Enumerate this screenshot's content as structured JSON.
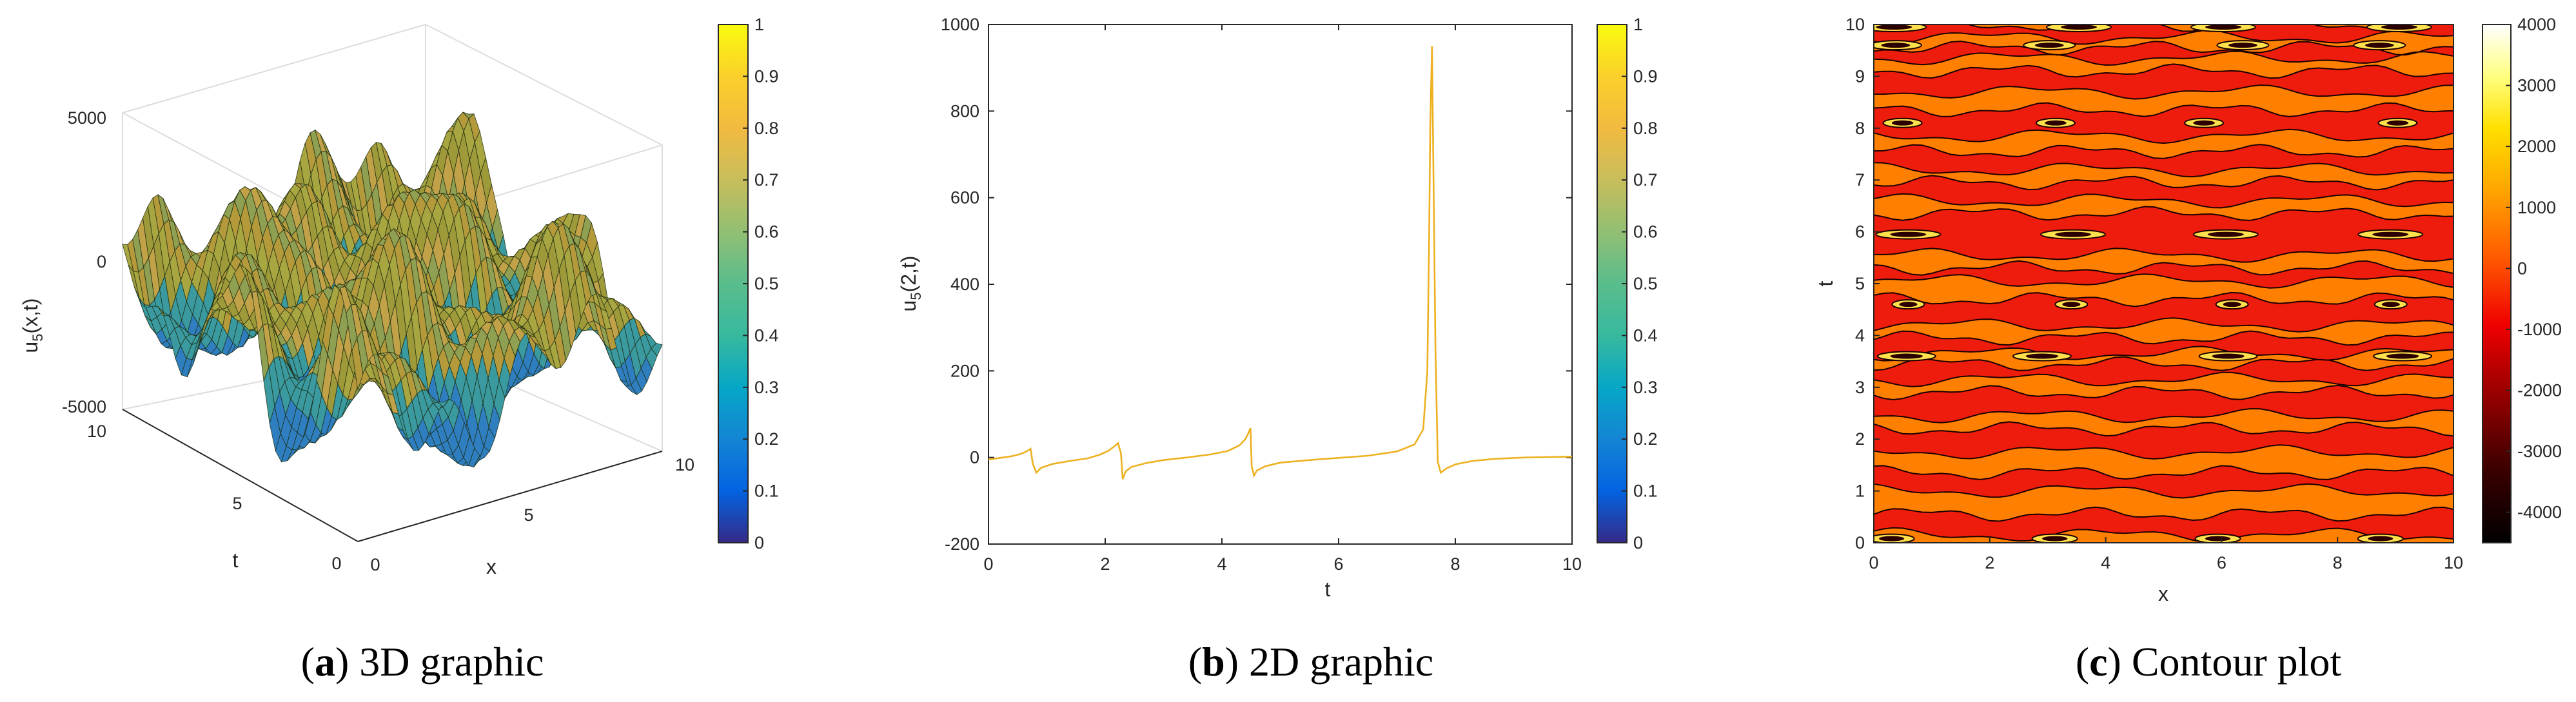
{
  "chart_data": [
    {
      "panel": "a",
      "type": "surface3d",
      "caption_letter": "a",
      "caption_text": "3D graphic",
      "zlabel_main": "u",
      "zlabel_sub": "5",
      "zlabel_arg": "(x,t)",
      "xlabel": "x",
      "tlabel": "t",
      "z_ticks": [
        "5000",
        "0",
        "-5000"
      ],
      "x_ticks": [
        "0",
        "5",
        "10"
      ],
      "t_ticks": [
        "0",
        "5",
        "10"
      ],
      "colorbar_ticks": [
        "0",
        "0.1",
        "0.2",
        "0.3",
        "0.4",
        "0.5",
        "0.6",
        "0.7",
        "0.8",
        "0.9",
        "1"
      ],
      "colorbar_range": [
        0,
        1
      ],
      "colormap": "parula",
      "zlim": [
        -5000,
        5000
      ],
      "xlim": [
        0,
        10
      ],
      "tlim": [
        0,
        10
      ]
    },
    {
      "panel": "b",
      "type": "line",
      "caption_letter": "b",
      "caption_text": "2D graphic",
      "ylabel_main": "u",
      "ylabel_sub": "5",
      "ylabel_arg": "(2,t)",
      "xlabel": "t",
      "xlim": [
        0,
        10
      ],
      "ylim": [
        -200,
        1000
      ],
      "x_ticks": [
        "0",
        "2",
        "4",
        "6",
        "8",
        "10"
      ],
      "y_ticks": [
        "-200",
        "0",
        "200",
        "400",
        "600",
        "800",
        "1000"
      ],
      "colorbar_ticks": [
        "0",
        "0.1",
        "0.2",
        "0.3",
        "0.4",
        "0.5",
        "0.6",
        "0.7",
        "0.8",
        "0.9",
        "1"
      ],
      "line_color": "#EDB120",
      "x": [
        0,
        0.2,
        0.4,
        0.55,
        0.65,
        0.7,
        0.72,
        0.76,
        0.82,
        0.9,
        1.1,
        1.4,
        1.7,
        1.9,
        2.05,
        2.15,
        2.22,
        2.27,
        2.3,
        2.35,
        2.45,
        2.7,
        3.0,
        3.4,
        3.8,
        4.1,
        4.3,
        4.4,
        4.45,
        4.49,
        4.51,
        4.55,
        4.6,
        4.75,
        5.0,
        5.5,
        6.0,
        6.5,
        7.0,
        7.3,
        7.45,
        7.52,
        7.55,
        7.57,
        7.6,
        7.63,
        7.66,
        7.7,
        7.75,
        7.85,
        8.0,
        8.3,
        8.7,
        9.2,
        9.6,
        10.0
      ],
      "y": [
        -5,
        -1,
        3,
        8,
        14,
        18,
        20,
        -15,
        -35,
        -24,
        -15,
        -8,
        -2,
        6,
        15,
        25,
        33,
        10,
        -50,
        -32,
        -22,
        -13,
        -6,
        0,
        7,
        15,
        28,
        42,
        55,
        68,
        -20,
        -42,
        -30,
        -20,
        -12,
        -6,
        -1,
        4,
        14,
        30,
        65,
        200,
        500,
        760,
        950,
        600,
        250,
        -10,
        -35,
        -25,
        -16,
        -8,
        -3,
        0,
        1,
        2
      ]
    },
    {
      "panel": "c",
      "type": "contour",
      "caption_letter": "c",
      "caption_text": "Contour plot",
      "xlabel": "x",
      "ylabel": "t",
      "xlim": [
        0,
        10
      ],
      "ylim": [
        0,
        10
      ],
      "x_ticks": [
        "0",
        "2",
        "4",
        "6",
        "8",
        "10"
      ],
      "y_ticks": [
        "0",
        "1",
        "2",
        "3",
        "4",
        "5",
        "6",
        "7",
        "8",
        "9",
        "10"
      ],
      "colorbar_ticks": [
        "4000",
        "3000",
        "2000",
        "1000",
        "0",
        "-1000",
        "-2000",
        "-3000",
        "-4000"
      ],
      "colorbar_range": [
        -4500,
        4000
      ],
      "colormap": "hot"
    }
  ]
}
